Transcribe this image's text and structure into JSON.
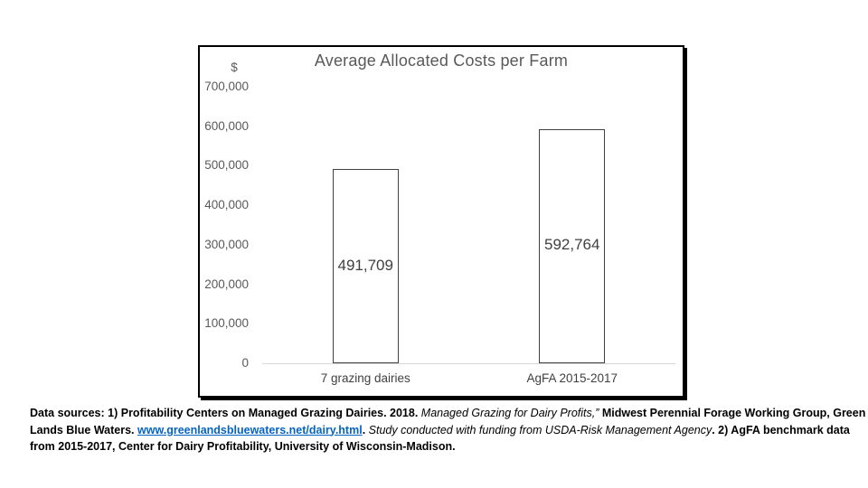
{
  "chart_data": {
    "type": "bar",
    "title": "Average Allocated Costs per Farm",
    "unit_label": "$",
    "categories": [
      "7 grazing dairies",
      "AgFA 2015-2017"
    ],
    "values": [
      491709,
      592764
    ],
    "value_labels": [
      "491,709",
      "592,764"
    ],
    "y_tick_labels": [
      "700,000",
      "600,000",
      "500,000",
      "400,000",
      "300,000",
      "200,000",
      "100,000",
      "0"
    ],
    "ylim": [
      0,
      700000
    ],
    "grid": false,
    "legend": "none",
    "bar_fill": "#ffffff",
    "bar_border": "#404040"
  },
  "colors": {
    "frame_border": "#000000",
    "title_text": "#595959",
    "tick_text": "#595959",
    "data_label_text": "#404040",
    "axis_line": "#d8d8d8",
    "link": "#0563c1",
    "body_text": "#000000"
  },
  "footnote": {
    "lines": [
      {
        "segments": [
          {
            "text": "Data sources: 1) Profitability Centers on Managed Grazing Dairies. 2018. ",
            "style": "bold"
          },
          {
            "text": "Managed Grazing for Dairy Profits,” ",
            "style": "italic"
          },
          {
            "text": "Midwest Perennial Forage Working Group, Green",
            "style": "bold"
          }
        ]
      },
      {
        "segments": [
          {
            "text": "Lands Blue Waters. ",
            "style": "bold"
          },
          {
            "text": "www.greenlandsbluewaters.net/dairy.html",
            "style": "link"
          },
          {
            "text": ". ",
            "style": "bold"
          },
          {
            "text": "Study conducted with funding from USDA-Risk Management Agency",
            "style": "italic"
          },
          {
            "text": ". 2) AgFA benchmark data",
            "style": "bold"
          }
        ]
      },
      {
        "segments": [
          {
            "text": "from 2015-2017, Center for Dairy Profitability, University of Wisconsin-Madison.",
            "style": "bold"
          }
        ]
      }
    ]
  }
}
